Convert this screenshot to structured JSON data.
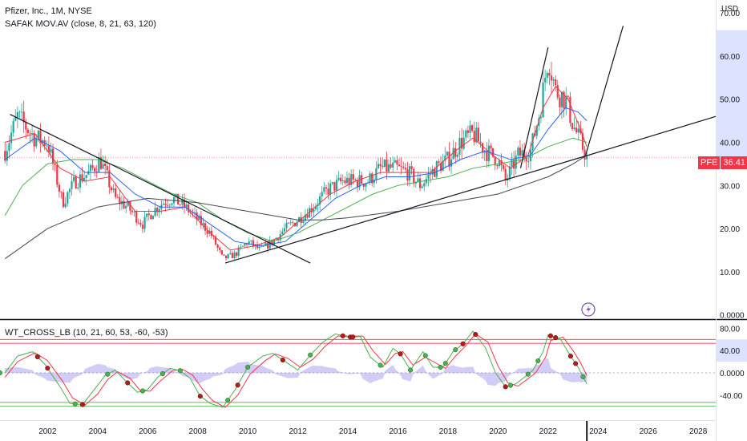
{
  "header": {
    "symbol_line": "Pfizer, Inc., 1M, NYSE",
    "indicator_line": "SAFAK  MOV.AV (close, 8, 21, 63, 120)"
  },
  "oscillator": {
    "label": "WT_CROSS_LB (10, 21, 60, 53, -60, -53)"
  },
  "price_tag": {
    "symbol": "PFE",
    "value": "36.41"
  },
  "colors": {
    "up": "#26a69a",
    "down": "#f23645",
    "ma_fast": "#f23645",
    "ma_mid": "#2962ff",
    "ma_slow": "#4caf50",
    "ma_long": "#434651",
    "trendline": "#131722",
    "wt1": "#4caf50",
    "wt2": "#f23645",
    "hist": "#7e72e6",
    "band_red": "#f23645",
    "band_green": "#4caf50",
    "axis_highlight": "#dbe3ff"
  },
  "icons": {
    "replay": "lightning-icon"
  },
  "chart_data": [
    {
      "type": "candlestick",
      "currency": "USD",
      "x_ticks": [
        "2002",
        "2004",
        "2006",
        "2008",
        "2010",
        "2012",
        "2014",
        "2016",
        "2018",
        "2020",
        "2022",
        "2024",
        "2026",
        "2028"
      ],
      "x_range": [
        2000.1,
        2028.7
      ],
      "y_ticks": [
        "0.0000",
        "10.00",
        "20.00",
        "30.00",
        "40.00",
        "50.00",
        "60.00",
        "70.00"
      ],
      "y_range": [
        -1,
        73
      ],
      "last_price": 36.41,
      "price_path": [
        [
          2000.3,
          38
        ],
        [
          2000.8,
          46
        ],
        [
          2001.5,
          41
        ],
        [
          2002.0,
          40
        ],
        [
          2002.6,
          26
        ],
        [
          2003.1,
          31
        ],
        [
          2003.7,
          33
        ],
        [
          2004.1,
          36
        ],
        [
          2004.7,
          27
        ],
        [
          2005.2,
          25
        ],
        [
          2005.8,
          21
        ],
        [
          2006.2,
          24
        ],
        [
          2006.6,
          26
        ],
        [
          2007.0,
          27
        ],
        [
          2007.5,
          25
        ],
        [
          2008.0,
          22
        ],
        [
          2008.5,
          19
        ],
        [
          2009.0,
          13
        ],
        [
          2009.5,
          14
        ],
        [
          2010.0,
          17
        ],
        [
          2010.5,
          15
        ],
        [
          2011.0,
          17
        ],
        [
          2011.5,
          20
        ],
        [
          2012.0,
          22
        ],
        [
          2012.6,
          25
        ],
        [
          2013.2,
          29
        ],
        [
          2013.8,
          31
        ],
        [
          2014.3,
          31
        ],
        [
          2014.8,
          31
        ],
        [
          2015.3,
          34
        ],
        [
          2015.9,
          34
        ],
        [
          2016.4,
          33
        ],
        [
          2016.9,
          30
        ],
        [
          2017.5,
          34
        ],
        [
          2018.0,
          36
        ],
        [
          2018.5,
          40
        ],
        [
          2019.0,
          42
        ],
        [
          2019.5,
          38
        ],
        [
          2020.0,
          36
        ],
        [
          2020.3,
          31
        ],
        [
          2020.8,
          37
        ],
        [
          2021.3,
          38
        ],
        [
          2021.7,
          48
        ],
        [
          2022.0,
          60
        ],
        [
          2022.3,
          52
        ],
        [
          2022.7,
          50
        ],
        [
          2023.0,
          44
        ],
        [
          2023.3,
          40
        ],
        [
          2023.55,
          36.41
        ]
      ],
      "moving_averages": [
        {
          "name": "8",
          "points": [
            [
              2000.3,
              40
            ],
            [
              2001.5,
              42
            ],
            [
              2002.5,
              34
            ],
            [
              2003.5,
              31
            ],
            [
              2004.5,
              32
            ],
            [
              2005.5,
              24
            ],
            [
              2006.5,
              24
            ],
            [
              2007.5,
              25
            ],
            [
              2008.5,
              19
            ],
            [
              2009.3,
              15
            ],
            [
              2010.3,
              16
            ],
            [
              2011.3,
              18
            ],
            [
              2012.3,
              23
            ],
            [
              2013.3,
              28
            ],
            [
              2014.3,
              31
            ],
            [
              2015.3,
              33
            ],
            [
              2016.3,
              33
            ],
            [
              2017.3,
              33
            ],
            [
              2018.3,
              38
            ],
            [
              2019.0,
              41
            ],
            [
              2019.8,
              37
            ],
            [
              2020.5,
              34
            ],
            [
              2021.2,
              37
            ],
            [
              2021.8,
              48
            ],
            [
              2022.3,
              53
            ],
            [
              2022.8,
              50
            ],
            [
              2023.3,
              43
            ],
            [
              2023.55,
              39
            ]
          ]
        },
        {
          "name": "21",
          "points": [
            [
              2000.3,
              36
            ],
            [
              2001.5,
              41
            ],
            [
              2002.5,
              38
            ],
            [
              2003.5,
              33
            ],
            [
              2004.5,
              33
            ],
            [
              2005.5,
              28
            ],
            [
              2006.5,
              25
            ],
            [
              2007.5,
              25
            ],
            [
              2008.5,
              21
            ],
            [
              2009.5,
              17
            ],
            [
              2010.5,
              16
            ],
            [
              2011.5,
              17
            ],
            [
              2012.5,
              22
            ],
            [
              2013.5,
              27
            ],
            [
              2014.5,
              30
            ],
            [
              2015.5,
              32
            ],
            [
              2016.5,
              32
            ],
            [
              2017.5,
              33
            ],
            [
              2018.5,
              36
            ],
            [
              2019.5,
              38
            ],
            [
              2020.5,
              36
            ],
            [
              2021.3,
              37
            ],
            [
              2022.0,
              43
            ],
            [
              2022.7,
              48
            ],
            [
              2023.2,
              47
            ],
            [
              2023.55,
              45
            ]
          ]
        },
        {
          "name": "63",
          "points": [
            [
              2000.3,
              23
            ],
            [
              2001.0,
              30
            ],
            [
              2002.0,
              35
            ],
            [
              2003.0,
              36
            ],
            [
              2004.0,
              36
            ],
            [
              2005.0,
              34
            ],
            [
              2006.0,
              31
            ],
            [
              2007.0,
              28
            ],
            [
              2008.0,
              26
            ],
            [
              2009.0,
              22
            ],
            [
              2010.0,
              19
            ],
            [
              2011.0,
              17
            ],
            [
              2012.0,
              19
            ],
            [
              2013.0,
              22
            ],
            [
              2014.0,
              25
            ],
            [
              2015.0,
              28
            ],
            [
              2016.0,
              30
            ],
            [
              2017.0,
              31
            ],
            [
              2018.0,
              32
            ],
            [
              2019.0,
              34
            ],
            [
              2020.0,
              35
            ],
            [
              2021.0,
              36
            ],
            [
              2022.0,
              39
            ],
            [
              2023.0,
              41
            ],
            [
              2023.55,
              40
            ]
          ]
        },
        {
          "name": "120",
          "points": [
            [
              2000.3,
              13
            ],
            [
              2002.0,
              20
            ],
            [
              2004.0,
              25
            ],
            [
              2006.0,
              27
            ],
            [
              2008.0,
              26
            ],
            [
              2010.0,
              24
            ],
            [
              2012.0,
              22
            ],
            [
              2013.0,
              22
            ],
            [
              2014.0,
              22.5
            ],
            [
              2016.0,
              24
            ],
            [
              2018.0,
              26
            ],
            [
              2020.0,
              28
            ],
            [
              2021.0,
              30
            ],
            [
              2022.0,
              32
            ],
            [
              2023.0,
              35
            ],
            [
              2023.55,
              37
            ]
          ]
        }
      ],
      "trendlines": [
        [
          [
            2000.5,
            46.5
          ],
          [
            2012.5,
            12
          ]
        ],
        [
          [
            2009.1,
            12
          ],
          [
            2023.6,
            37
          ]
        ],
        [
          [
            2023.6,
            37
          ],
          [
            2028.7,
            46
          ]
        ],
        [
          [
            2023.5,
            37
          ],
          [
            2025.0,
            67
          ]
        ],
        [
          [
            2020.9,
            34
          ],
          [
            2022.0,
            62
          ]
        ]
      ]
    },
    {
      "type": "line",
      "name": "WT_CROSS_LB",
      "y_ticks": [
        "80.00",
        "40.00",
        "0.0000",
        "-40.00"
      ],
      "y_range": [
        -85,
        95
      ],
      "levels": [
        60,
        53,
        -60,
        -53
      ],
      "wt1": [
        [
          2000.3,
          0
        ],
        [
          2000.8,
          30
        ],
        [
          2001.4,
          38
        ],
        [
          2001.9,
          15
        ],
        [
          2002.5,
          -25
        ],
        [
          2002.9,
          -55
        ],
        [
          2003.4,
          -57
        ],
        [
          2003.9,
          -28
        ],
        [
          2004.3,
          -5
        ],
        [
          2004.7,
          5
        ],
        [
          2005.2,
          -18
        ],
        [
          2005.6,
          -35
        ],
        [
          2006.0,
          -30
        ],
        [
          2006.4,
          -8
        ],
        [
          2006.9,
          8
        ],
        [
          2007.3,
          4
        ],
        [
          2007.7,
          -10
        ],
        [
          2008.1,
          -42
        ],
        [
          2008.5,
          -55
        ],
        [
          2009.0,
          -62
        ],
        [
          2009.5,
          -30
        ],
        [
          2010.0,
          10
        ],
        [
          2010.6,
          30
        ],
        [
          2011.0,
          35
        ],
        [
          2011.5,
          20
        ],
        [
          2012.0,
          5
        ],
        [
          2012.5,
          32
        ],
        [
          2013.0,
          55
        ],
        [
          2013.5,
          70
        ],
        [
          2014.0,
          64
        ],
        [
          2014.5,
          65
        ],
        [
          2014.9,
          28
        ],
        [
          2015.4,
          10
        ],
        [
          2015.8,
          44
        ],
        [
          2016.1,
          34
        ],
        [
          2016.5,
          5
        ],
        [
          2017.0,
          38
        ],
        [
          2017.4,
          10
        ],
        [
          2017.8,
          10
        ],
        [
          2018.2,
          38
        ],
        [
          2018.6,
          52
        ],
        [
          2019.0,
          75
        ],
        [
          2019.5,
          45
        ],
        [
          2019.9,
          0
        ],
        [
          2020.3,
          -25
        ],
        [
          2020.7,
          -20
        ],
        [
          2021.0,
          -10
        ],
        [
          2021.4,
          5
        ],
        [
          2021.8,
          38
        ],
        [
          2022.0,
          68
        ],
        [
          2022.5,
          60
        ],
        [
          2022.9,
          30
        ],
        [
          2023.2,
          10
        ],
        [
          2023.55,
          -20
        ]
      ],
      "wt2": [
        [
          2000.3,
          -8
        ],
        [
          2000.8,
          20
        ],
        [
          2001.5,
          36
        ],
        [
          2002.0,
          22
        ],
        [
          2002.6,
          -15
        ],
        [
          2003.0,
          -45
        ],
        [
          2003.5,
          -58
        ],
        [
          2004.0,
          -38
        ],
        [
          2004.4,
          -12
        ],
        [
          2004.8,
          2
        ],
        [
          2005.3,
          -10
        ],
        [
          2005.7,
          -32
        ],
        [
          2006.1,
          -33
        ],
        [
          2006.5,
          -15
        ],
        [
          2007.0,
          4
        ],
        [
          2007.4,
          6
        ],
        [
          2007.8,
          -4
        ],
        [
          2008.2,
          -30
        ],
        [
          2008.6,
          -50
        ],
        [
          2009.1,
          -62
        ],
        [
          2009.6,
          -40
        ],
        [
          2010.1,
          -2
        ],
        [
          2010.7,
          22
        ],
        [
          2011.1,
          34
        ],
        [
          2011.6,
          26
        ],
        [
          2012.1,
          10
        ],
        [
          2012.6,
          24
        ],
        [
          2013.1,
          48
        ],
        [
          2013.6,
          66
        ],
        [
          2014.1,
          66
        ],
        [
          2014.6,
          66
        ],
        [
          2015.0,
          40
        ],
        [
          2015.5,
          15
        ],
        [
          2015.9,
          35
        ],
        [
          2016.2,
          38
        ],
        [
          2016.6,
          14
        ],
        [
          2017.1,
          28
        ],
        [
          2017.5,
          18
        ],
        [
          2017.9,
          8
        ],
        [
          2018.3,
          30
        ],
        [
          2018.7,
          48
        ],
        [
          2019.1,
          70
        ],
        [
          2019.6,
          55
        ],
        [
          2020.0,
          12
        ],
        [
          2020.4,
          -18
        ],
        [
          2020.8,
          -24
        ],
        [
          2021.1,
          -14
        ],
        [
          2021.5,
          0
        ],
        [
          2021.9,
          28
        ],
        [
          2022.1,
          58
        ],
        [
          2022.6,
          64
        ],
        [
          2023.0,
          40
        ],
        [
          2023.3,
          18
        ],
        [
          2023.55,
          -5
        ]
      ],
      "cross_up": [
        2000.1,
        2003.1,
        2004.4,
        2005.8,
        2006.6,
        2007.3,
        2009.2,
        2010.0,
        2012.5,
        2015.3,
        2016.5,
        2017.1,
        2017.7,
        2017.9,
        2018.3,
        2020.5,
        2021.2,
        2021.6,
        2023.4
      ],
      "cross_down": [
        2001.6,
        2002.0,
        2003.4,
        2005.2,
        2008.1,
        2009.6,
        2011.4,
        2013.8,
        2014.1,
        2014.2,
        2016.1,
        2018.6,
        2019.1,
        2020.3,
        2022.1,
        2022.3,
        2022.9,
        2023.1
      ]
    }
  ]
}
